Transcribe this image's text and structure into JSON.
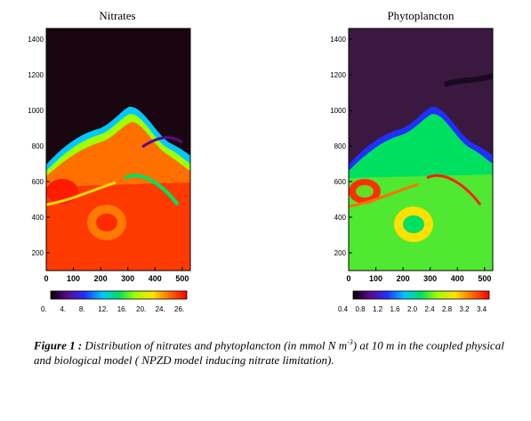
{
  "figure": {
    "panels": [
      {
        "id": "nitrates",
        "title": "Nitrates",
        "y_ticks": [
          "1400",
          "1200",
          "1000",
          "800",
          "600",
          "400",
          "200"
        ],
        "x_ticks": [
          "0",
          "100",
          "200",
          "300",
          "400",
          "500"
        ],
        "colorbar_ticks": [
          "0.",
          "4.",
          "8.",
          "12.",
          "16.",
          "20.",
          "24.",
          "26."
        ]
      },
      {
        "id": "phyto",
        "title": "Phytoplancton",
        "y_ticks": [
          "1400",
          "1200",
          "1000",
          "800",
          "600",
          "400",
          "200"
        ],
        "x_ticks": [
          "0",
          "100",
          "200",
          "300",
          "400",
          "500"
        ],
        "colorbar_ticks": [
          "0.4",
          "0.8",
          "1.2",
          "1.6",
          "2.0",
          "2.4",
          "2.8",
          "3.2",
          "3.4"
        ]
      }
    ],
    "caption": {
      "label": "Figure 1 :",
      "text_before_exp": " Distribution of nitrates and phytoplancton (in mmol N m",
      "exponent": "-3",
      "text_after_exp": ") at 10 m in the coupled physical and biological model ( NPZD model inducing nitrate limitation)."
    },
    "colors": {
      "background_dark": "#2a0a24",
      "phyto_background": "#3a1840"
    }
  }
}
